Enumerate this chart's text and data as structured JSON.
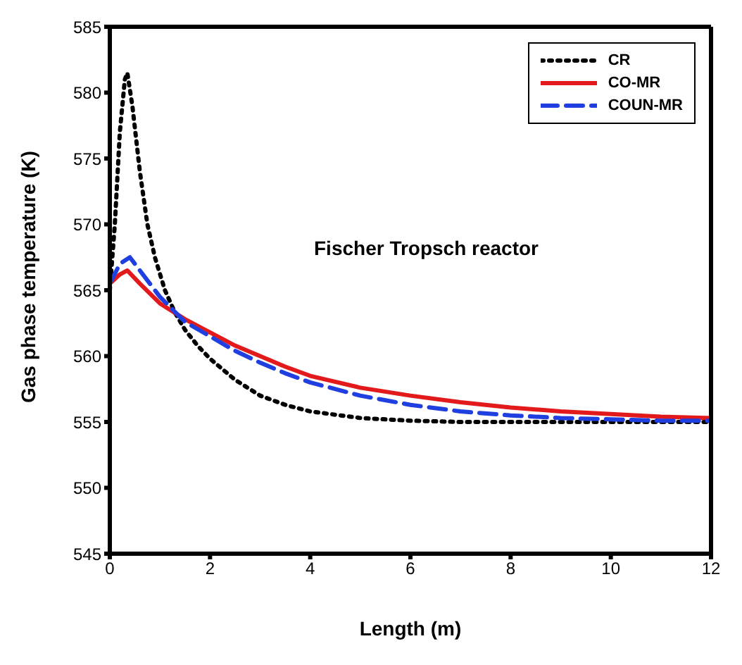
{
  "chart_data": {
    "type": "line",
    "xlabel": "Length (m)",
    "ylabel": "Gas phase temperature (K)",
    "annotations": [
      "Fischer Tropsch reactor"
    ],
    "xlim": [
      0,
      12
    ],
    "xticks": [
      0,
      2,
      4,
      6,
      8,
      10,
      12
    ],
    "ylim": [
      545,
      585
    ],
    "yticks": [
      545,
      550,
      555,
      560,
      565,
      570,
      575,
      580,
      585
    ],
    "grid": false,
    "legend": "top right",
    "series": [
      {
        "name": "CR",
        "color": "#000000",
        "line_style": "dotted",
        "x": [
          0,
          0.1,
          0.2,
          0.3,
          0.35,
          0.45,
          0.6,
          0.75,
          0.9,
          1.1,
          1.3,
          1.5,
          1.75,
          2,
          2.5,
          3,
          3.5,
          4,
          5,
          6,
          7,
          8,
          9,
          10,
          11,
          12
        ],
        "values": [
          565,
          570,
          577,
          581,
          581.5,
          579,
          574,
          570,
          567.5,
          565,
          563.3,
          562,
          560.8,
          559.8,
          558.2,
          557,
          556.3,
          555.8,
          555.3,
          555.1,
          555,
          555,
          555,
          555,
          555,
          555
        ]
      },
      {
        "name": "CO-MR",
        "color": "#e31a1c",
        "line_style": "solid",
        "x": [
          0,
          0.2,
          0.35,
          0.6,
          1,
          1.5,
          2,
          2.5,
          3,
          3.5,
          4,
          5,
          6,
          7,
          8,
          9,
          10,
          11,
          12
        ],
        "values": [
          565.5,
          566.2,
          566.5,
          565.5,
          564,
          562.8,
          561.8,
          560.8,
          560,
          559.2,
          558.5,
          557.6,
          557,
          556.5,
          556.1,
          555.8,
          555.6,
          555.4,
          555.3
        ]
      },
      {
        "name": "COUN-MR",
        "color": "#1f3fe0",
        "line_style": "dashed",
        "x": [
          0,
          0.2,
          0.4,
          0.6,
          1,
          1.5,
          2,
          2.5,
          3,
          3.5,
          4,
          5,
          6,
          7,
          8,
          9,
          10,
          11,
          12
        ],
        "values": [
          565.5,
          567,
          567.5,
          566.5,
          564.5,
          562.6,
          561.5,
          560.4,
          559.5,
          558.7,
          558,
          557,
          556.3,
          555.8,
          555.5,
          555.3,
          555.2,
          555.1,
          555.1
        ]
      }
    ]
  }
}
